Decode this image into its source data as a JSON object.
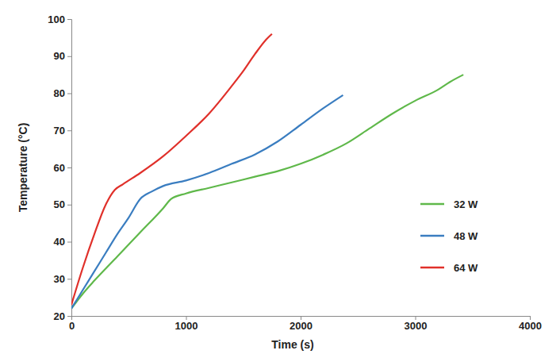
{
  "chart_data": {
    "type": "line",
    "x_label": "Time (s)",
    "y_label": "Temperature (°C)",
    "xlim": [
      0,
      4000
    ],
    "xticks": [
      0,
      1000,
      2000,
      3000,
      4000
    ],
    "ylim": [
      20,
      100
    ],
    "yticks": [
      20,
      30,
      40,
      50,
      60,
      70,
      80,
      90,
      100
    ],
    "grid": false,
    "legend": "right",
    "series": [
      {
        "name": "32 W",
        "color": "#5fb84a",
        "x": [
          0,
          100,
          200,
          400,
          600,
          800,
          870,
          1000,
          1200,
          1400,
          1600,
          1800,
          2000,
          2200,
          2400,
          2600,
          2800,
          3000,
          3200,
          3300,
          3420
        ],
        "values": [
          22,
          26,
          29.5,
          36,
          42.5,
          49,
          51.5,
          53,
          54.5,
          56,
          57.5,
          59,
          61,
          63.5,
          66.5,
          70.5,
          74.5,
          78,
          81,
          83,
          85
        ]
      },
      {
        "name": "48 W",
        "color": "#3a7dc0",
        "x": [
          0,
          100,
          200,
          300,
          400,
          500,
          600,
          700,
          800,
          1000,
          1200,
          1400,
          1600,
          1800,
          2000,
          2200,
          2370
        ],
        "values": [
          22,
          27,
          32,
          37,
          42,
          46.5,
          51.5,
          53.5,
          55,
          56.5,
          58.5,
          61,
          63.5,
          67,
          71.5,
          76,
          79.5
        ]
      },
      {
        "name": "64 W",
        "color": "#e0302a",
        "x": [
          0,
          100,
          200,
          300,
          380,
          450,
          600,
          800,
          1000,
          1200,
          1400,
          1500,
          1600,
          1700,
          1750
        ],
        "values": [
          23,
          33,
          42,
          50,
          54,
          55.5,
          58.5,
          63,
          68.5,
          74.5,
          82,
          86,
          90.5,
          94.5,
          96
        ]
      }
    ]
  }
}
